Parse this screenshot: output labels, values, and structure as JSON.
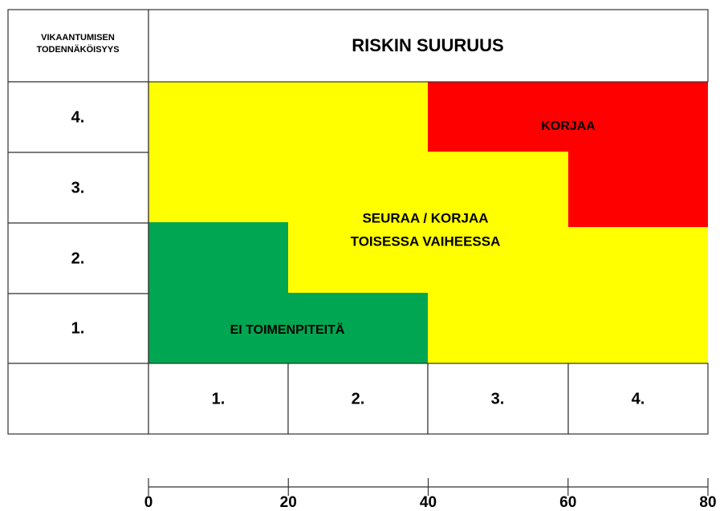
{
  "header": {
    "probability_label": [
      "VIKAANTUMISEN",
      "TODENNÄKÖISYYS"
    ],
    "title": "RISKIN SUURUUS"
  },
  "rows": [
    "4.",
    "3.",
    "2.",
    "1."
  ],
  "columns": [
    "1.",
    "2.",
    "3.",
    "4."
  ],
  "zones": {
    "fix": "KORJAA",
    "monitor": [
      "SEURAA / KORJAA",
      "TOISESSA VAIHEESSA"
    ],
    "none": "EI TOIMENPITEITÄ"
  },
  "scale": {
    "ticks": [
      0,
      20,
      40,
      60,
      80
    ]
  }
}
